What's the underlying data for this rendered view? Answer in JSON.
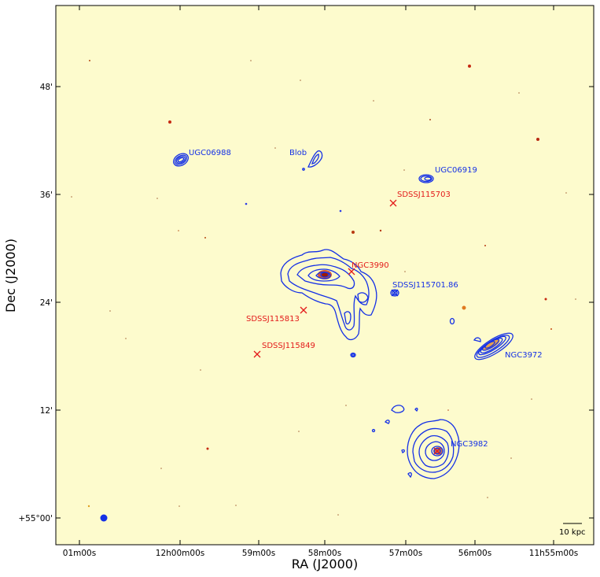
{
  "colors": {
    "background": "#fdfbcd",
    "contour": "#1430e6",
    "marker": "#e31a1a",
    "label_red": "#e31a1a",
    "label_blue": "#1430e6"
  },
  "chart_data": {
    "type": "scatter",
    "title": "",
    "xlabel": "RA (J2000)",
    "ylabel": "Dec (J2000)",
    "x_ticks": [
      "01m00s",
      "12h00m00s",
      "59m00s",
      "58m00s",
      "57m00s",
      "56m00s",
      "11h55m00s"
    ],
    "y_ticks": [
      "+55°00'",
      "12'",
      "24'",
      "36'",
      "48'"
    ],
    "grid": false,
    "scale_bar": "10 kpc",
    "sources": [
      {
        "name": "UGC06988",
        "kind": "contour",
        "color": "blue"
      },
      {
        "name": "Blob",
        "kind": "contour",
        "color": "blue"
      },
      {
        "name": "UGC06919",
        "kind": "contour",
        "color": "blue"
      },
      {
        "name": "SDSSJ115703",
        "kind": "marker",
        "color": "red"
      },
      {
        "name": "NGC3990",
        "kind": "marker",
        "color": "red"
      },
      {
        "name": "SDSSJ115701.86",
        "kind": "marker",
        "color": "blue"
      },
      {
        "name": "SDSSJ115813",
        "kind": "marker",
        "color": "red"
      },
      {
        "name": "SDSSJ115849",
        "kind": "marker",
        "color": "red"
      },
      {
        "name": "NGC3972",
        "kind": "contour",
        "color": "blue"
      },
      {
        "name": "NGC3982",
        "kind": "contour",
        "color": "blue"
      }
    ]
  }
}
